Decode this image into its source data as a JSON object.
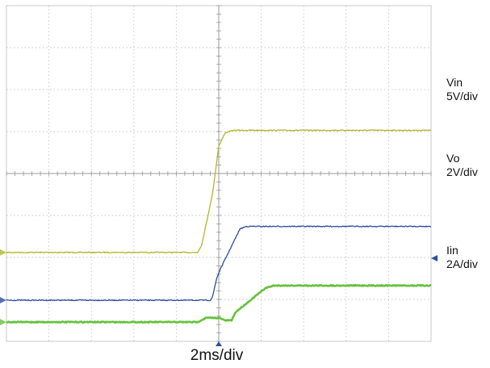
{
  "chart_data": {
    "type": "line",
    "title": "",
    "xlabel": "2ms/div",
    "ylabel": "",
    "grid": true,
    "divisions": {
      "x": 10,
      "y": 8
    },
    "xlim_div": [
      0,
      10
    ],
    "ylim_div": [
      0,
      8
    ],
    "series": [
      {
        "id": "vin",
        "name": "Vin",
        "scale": "5V/div",
        "color": "#b5b52a",
        "stroke": 1.3,
        "points_div": [
          [
            0,
            2.12
          ],
          [
            4.5,
            2.12
          ],
          [
            4.6,
            2.3
          ],
          [
            4.85,
            3.5
          ],
          [
            5.0,
            4.65
          ],
          [
            5.15,
            4.97
          ],
          [
            5.35,
            5.03
          ],
          [
            10,
            5.03
          ]
        ]
      },
      {
        "id": "vo",
        "name": "Vo",
        "scale": "2V/div",
        "color": "#2c4ea0",
        "stroke": 1.3,
        "points_div": [
          [
            0,
            0.98
          ],
          [
            4.8,
            0.98
          ],
          [
            4.85,
            1.05
          ],
          [
            4.95,
            1.5
          ],
          [
            5.05,
            1.75
          ],
          [
            5.5,
            2.68
          ],
          [
            5.65,
            2.74
          ],
          [
            10,
            2.74
          ]
        ]
      },
      {
        "id": "iin",
        "name": "Iin",
        "scale": "2A/div",
        "color": "#66c23c",
        "stroke": 2.6,
        "points_div": [
          [
            0,
            0.46
          ],
          [
            4.5,
            0.46
          ],
          [
            4.7,
            0.56
          ],
          [
            5.0,
            0.56
          ],
          [
            5.15,
            0.5
          ],
          [
            5.3,
            0.5
          ],
          [
            5.4,
            0.7
          ],
          [
            6.1,
            1.27
          ],
          [
            6.3,
            1.33
          ],
          [
            10,
            1.33
          ]
        ]
      }
    ]
  }
}
